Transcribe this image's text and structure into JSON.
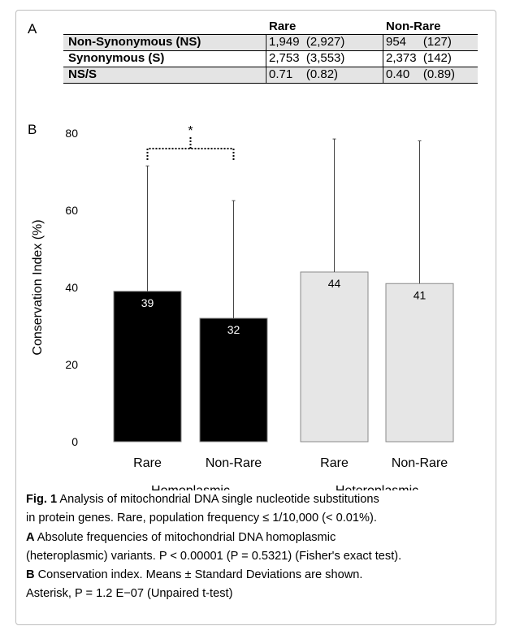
{
  "panels": {
    "a": "A",
    "b": "B"
  },
  "table": {
    "headers": [
      "Rare",
      "Non-Rare"
    ],
    "rows": [
      {
        "label": "Non-Synonymous (NS)",
        "rare": "1,949  (2,927)",
        "nonrare": "954     (127)"
      },
      {
        "label": "Synonymous (S)",
        "rare": "2,753  (3,553)",
        "nonrare": "2,373  (142)"
      },
      {
        "label": "NS/S",
        "rare": "0.71    (0.82)",
        "nonrare": "0.40    (0.89)"
      }
    ]
  },
  "chart_data": {
    "type": "bar",
    "ylabel": "Conservation Index (%)",
    "ylim": [
      0,
      80
    ],
    "yticks": [
      0,
      20,
      40,
      60,
      80
    ],
    "grid": false,
    "groups": [
      "Homoplasmic",
      "Heteroplasmic"
    ],
    "categories": [
      "Rare",
      "Non-Rare",
      "Rare",
      "Non-Rare"
    ],
    "values": [
      39,
      32,
      44,
      41
    ],
    "error_upper": [
      71.5,
      62.5,
      78.5,
      78
    ],
    "value_labels": [
      "39",
      "32",
      "44",
      "41"
    ],
    "bar_colors": [
      "#000000",
      "#000000",
      "#e6e6e6",
      "#e6e6e6"
    ],
    "value_label_colors": [
      "#ffffff",
      "#ffffff",
      "#000000",
      "#000000"
    ],
    "significance": {
      "between": [
        0,
        1
      ],
      "label": "*"
    }
  },
  "caption": {
    "fig_label": "Fig. 1",
    "line1": "  Analysis of mitochondrial DNA single nucleotide substitutions",
    "line2": "in protein genes. Rare, population frequency ≤ 1/10,000 (< 0.01%).",
    "a_label": "A",
    "line3": " Absolute frequencies of mitochondrial DNA homoplasmic",
    "line4": "(heteroplasmic) variants. P < 0.00001 (P = 0.5321) (Fisher's exact test).",
    "b_label": "B",
    "line5": " Conservation index. Means ± Standard Deviations are shown.",
    "line6": "Asterisk, P = 1.2 E−07 (Unpaired t-test)"
  }
}
